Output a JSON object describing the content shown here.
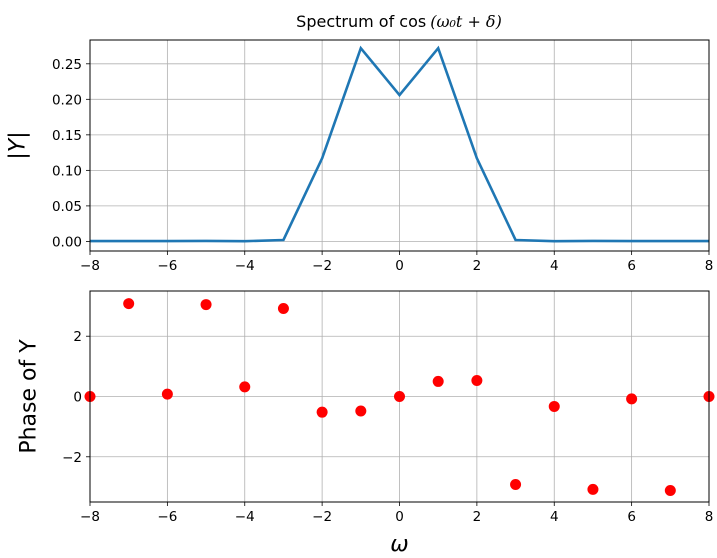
{
  "chart_data": [
    {
      "type": "line",
      "title": "Spectrum of cos",
      "title_math": "(ω₀t + δ)",
      "xlabel": "",
      "ylabel": "|Y|",
      "xlim": [
        -8,
        8
      ],
      "ylim": [
        -0.0135,
        0.2835
      ],
      "xticks": [
        -8,
        -6,
        -4,
        -2,
        0,
        2,
        4,
        6,
        8
      ],
      "xtick_labels": [
        "−8",
        "−6",
        "−4",
        "−2",
        "0",
        "2",
        "4",
        "6",
        "8"
      ],
      "yticks": [
        0.0,
        0.05,
        0.1,
        0.15,
        0.2,
        0.25
      ],
      "ytick_labels": [
        "0.00",
        "0.05",
        "0.10",
        "0.15",
        "0.20",
        "0.25"
      ],
      "grid": true,
      "color": "#1f77b4",
      "series": [
        {
          "x": [
            -8,
            -7,
            -6,
            -5,
            -4,
            -3,
            -2,
            -1,
            0,
            1,
            2,
            3,
            4,
            5,
            6,
            7,
            8
          ],
          "y": [
            0.0005,
            0.0005,
            0.0005,
            0.0007,
            0.0003,
            0.002,
            0.117,
            0.272,
            0.206,
            0.272,
            0.117,
            0.002,
            0.0003,
            0.0007,
            0.0005,
            0.0005,
            0.0005
          ]
        }
      ]
    },
    {
      "type": "scatter",
      "title": "",
      "xlabel": "ω",
      "ylabel": "Phase of Y",
      "xlim": [
        -8,
        8
      ],
      "ylim": [
        -3.5,
        3.5
      ],
      "xticks": [
        -8,
        -6,
        -4,
        -2,
        0,
        2,
        4,
        6,
        8
      ],
      "xtick_labels": [
        "−8",
        "−6",
        "−4",
        "−2",
        "0",
        "2",
        "4",
        "6",
        "8"
      ],
      "yticks": [
        -2,
        0,
        2
      ],
      "ytick_labels": [
        "−2",
        "0",
        "2"
      ],
      "grid": true,
      "color": "#ff0000",
      "series": [
        {
          "x": [
            -8,
            -7,
            -6,
            -5,
            -4,
            -3,
            -2,
            -1,
            0,
            1,
            2,
            3,
            4,
            5,
            6,
            7,
            8
          ],
          "y": [
            0.0,
            3.08,
            0.08,
            3.05,
            0.32,
            2.92,
            -0.52,
            -0.48,
            0.0,
            0.5,
            0.53,
            -2.92,
            -0.33,
            -3.08,
            -0.08,
            -3.12,
            0.0
          ]
        }
      ]
    }
  ]
}
